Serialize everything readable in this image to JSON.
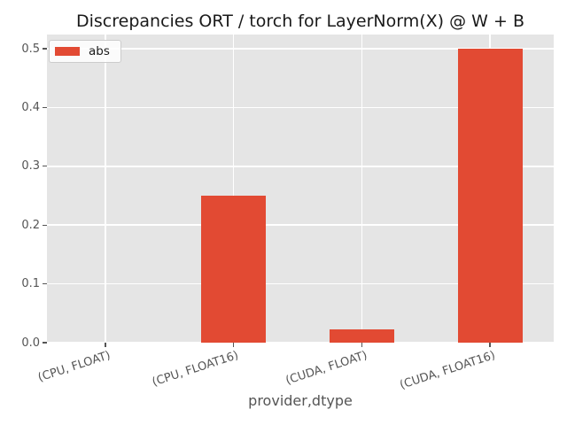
{
  "chart_data": {
    "type": "bar",
    "title": "Discrepancies ORT / torch for LayerNorm(X) @ W + B",
    "xlabel": "provider,dtype",
    "ylabel": "",
    "categories": [
      "(CPU, FLOAT)",
      "(CPU, FLOAT16)",
      "(CUDA, FLOAT)",
      "(CUDA, FLOAT16)"
    ],
    "series": [
      {
        "name": "abs",
        "values": [
          0.0,
          0.25,
          0.023,
          0.5
        ]
      }
    ],
    "yticks": [
      0.0,
      0.1,
      0.2,
      0.3,
      0.4,
      0.5
    ],
    "ytick_labels": [
      "0.0",
      "0.1",
      "0.2",
      "0.3",
      "0.4",
      "0.5"
    ],
    "ylim": [
      0,
      0.524
    ],
    "grid": true,
    "legend_position": "upper left",
    "colors": {
      "bar": "#E24A33",
      "plot_bg": "#E5E5E5",
      "grid": "#FFFFFF",
      "tick_color": "#555555",
      "tick_label": "#555555",
      "axis_label": "#555555",
      "title": "#1a1a1a",
      "figure_bg": "#FFFFFF"
    }
  }
}
